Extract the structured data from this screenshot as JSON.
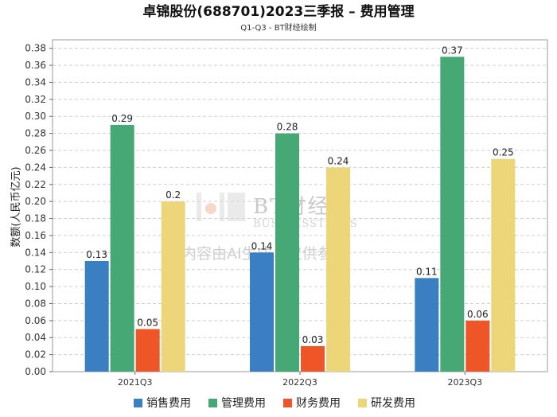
{
  "chart_data": {
    "type": "bar",
    "title": "卓锦股份(688701)2023三季报 – 费用管理",
    "subtitle": "Q1-Q3 - BT财经绘制",
    "xlabel": "",
    "ylabel": "数额(人民币亿元)",
    "ylim": [
      0,
      0.39
    ],
    "ytick_step": 0.02,
    "grid": true,
    "legend_position": "bottom",
    "categories": [
      "2021Q3",
      "2022Q3",
      "2023Q3"
    ],
    "series": [
      {
        "name": "销售费用",
        "color": "#3a7fc1",
        "values": [
          0.13,
          0.14,
          0.11
        ],
        "labels": [
          "0.13",
          "0.14",
          "0.11"
        ]
      },
      {
        "name": "管理费用",
        "color": "#46a874",
        "values": [
          0.29,
          0.28,
          0.37
        ],
        "labels": [
          "0.29",
          "0.28",
          "0.37"
        ]
      },
      {
        "name": "财务费用",
        "color": "#ee5527",
        "values": [
          0.05,
          0.03,
          0.06
        ],
        "labels": [
          "0.05",
          "0.03",
          "0.06"
        ]
      },
      {
        "name": "研发费用",
        "color": "#edd679",
        "values": [
          0.2,
          0.24,
          0.25
        ],
        "labels": [
          "0.2",
          "0.24",
          "0.25"
        ]
      }
    ]
  },
  "watermark": {
    "brand": "BT财经",
    "brand_en": "BUSINESSTIMES",
    "note": "内容由AI生成，仅供参考"
  }
}
